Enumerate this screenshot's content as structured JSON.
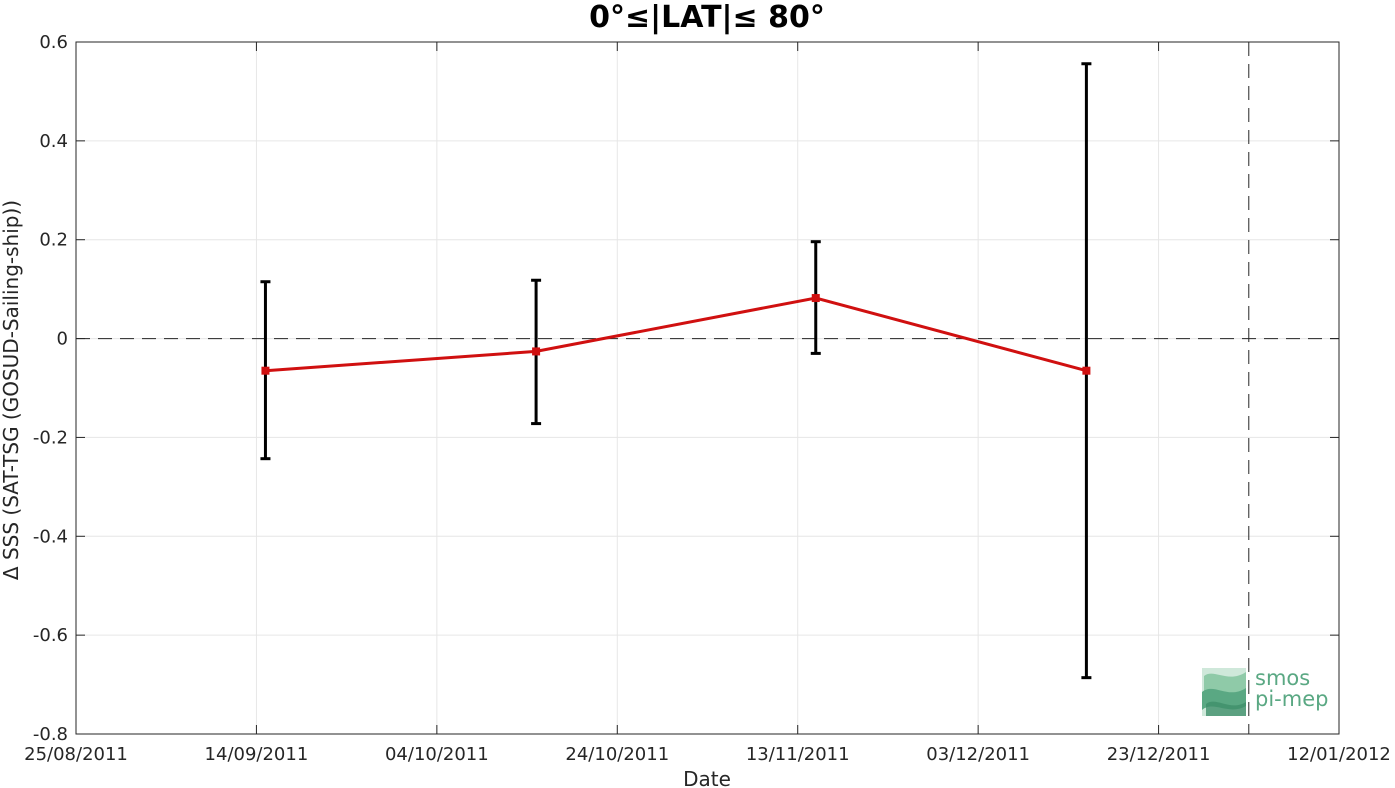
{
  "chart_data": {
    "type": "line",
    "title": "0°≤|LAT|≤ 80°",
    "xlabel": "Date",
    "ylabel": "Δ SSS (SAT-TSG (GOSUD-Sailing-ship))",
    "x_axis": {
      "type": "date",
      "range": [
        "2011-08-25",
        "2012-01-12"
      ],
      "ticks": [
        {
          "date": "2011-08-25",
          "label": "25/08/2011"
        },
        {
          "date": "2011-09-14",
          "label": "14/09/2011"
        },
        {
          "date": "2011-10-04",
          "label": "04/10/2011"
        },
        {
          "date": "2011-10-24",
          "label": "24/10/2011"
        },
        {
          "date": "2011-11-13",
          "label": "13/11/2011"
        },
        {
          "date": "2011-12-03",
          "label": "03/12/2011"
        },
        {
          "date": "2011-12-23",
          "label": "23/12/2011"
        },
        {
          "date": "2012-01-12",
          "label": "12/01/2012"
        }
      ]
    },
    "y_axis": {
      "range": [
        -0.8,
        0.6
      ],
      "ticks": [
        {
          "value": 0.6,
          "label": "0.6"
        },
        {
          "value": 0.4,
          "label": "0.4"
        },
        {
          "value": 0.2,
          "label": "0.2"
        },
        {
          "value": 0,
          "label": "0"
        },
        {
          "value": -0.2,
          "label": "-0.2"
        },
        {
          "value": -0.4,
          "label": "-0.4"
        },
        {
          "value": -0.6,
          "label": "-0.6"
        },
        {
          "value": -0.8,
          "label": "-0.8"
        }
      ]
    },
    "grid": true,
    "reference_lines": {
      "horizontal_y": 0,
      "vertical_date": "2012-01-02"
    },
    "series": [
      {
        "color": "#d01010",
        "marker": "square",
        "points": [
          {
            "date": "2011-09-15",
            "y": -0.065,
            "err_low": -0.243,
            "err_high": 0.115
          },
          {
            "date": "2011-10-15",
            "y": -0.026,
            "err_low": -0.172,
            "err_high": 0.118
          },
          {
            "date": "2011-11-15",
            "y": 0.082,
            "err_low": -0.03,
            "err_high": 0.196
          },
          {
            "date": "2011-12-15",
            "y": -0.065,
            "err_low": -0.686,
            "err_high": 0.556
          }
        ]
      }
    ],
    "errorbar_color": "#000000"
  },
  "logo": {
    "line1": "smos",
    "line2": "pi-mep",
    "color": "#5aa883"
  }
}
